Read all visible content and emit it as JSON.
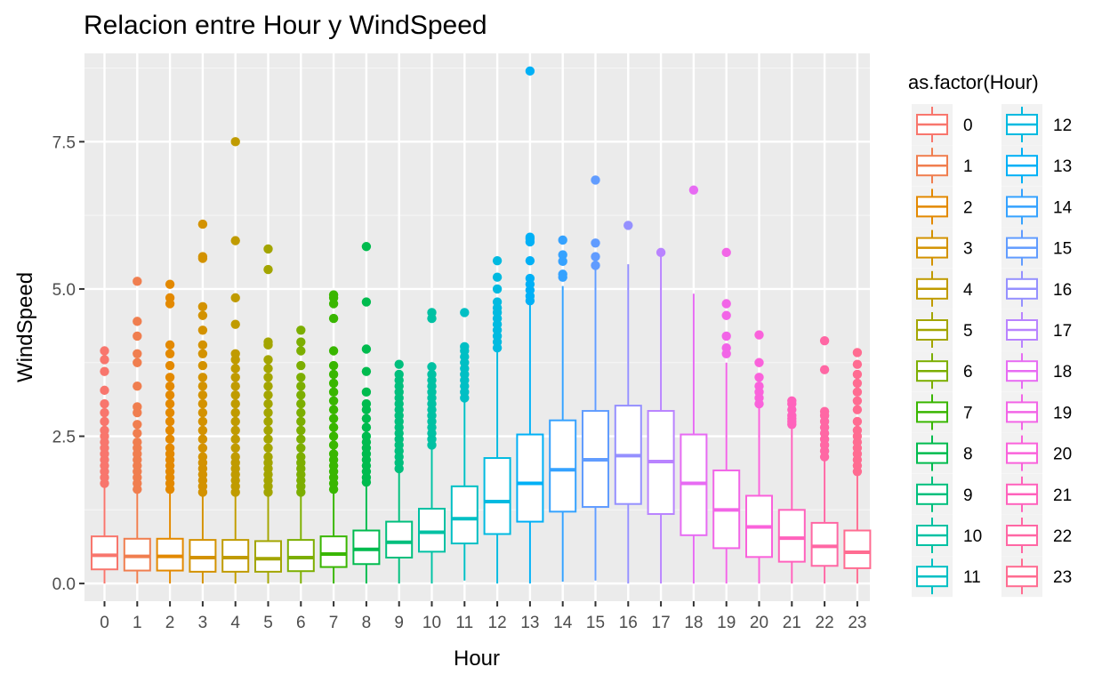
{
  "chart_data": {
    "type": "box",
    "title": "Relacion entre Hour y WindSpeed",
    "xlabel": "Hour",
    "ylabel": "WindSpeed",
    "ylim": [
      -0.3,
      9.0
    ],
    "y_ticks": [
      0.0,
      2.5,
      5.0,
      7.5
    ],
    "y_tick_labels": [
      "0.0",
      "2.5",
      "5.0",
      "7.5"
    ],
    "legend": {
      "title": "as.factor(Hour)",
      "position": "right"
    },
    "colors": [
      "#F8766D",
      "#F07E4F",
      "#E38900",
      "#D39200",
      "#C09B00",
      "#A3A500",
      "#7CAE00",
      "#39B600",
      "#00BB4E",
      "#00BF7D",
      "#00C1A3",
      "#00BFC4",
      "#00BAE0",
      "#00B0F6",
      "#35A2FF",
      "#619CFF",
      "#9590FF",
      "#B983FF",
      "#E76BF3",
      "#F265E7",
      "#FA62DB",
      "#FF62BC",
      "#FF67A4",
      "#FF6C91"
    ],
    "categories": [
      "0",
      "1",
      "2",
      "3",
      "4",
      "5",
      "6",
      "7",
      "8",
      "9",
      "10",
      "11",
      "12",
      "13",
      "14",
      "15",
      "16",
      "17",
      "18",
      "19",
      "20",
      "21",
      "22",
      "23"
    ],
    "boxes": [
      {
        "min": 0.0,
        "q1": 0.24,
        "median": 0.48,
        "q3": 0.8,
        "max": 1.65,
        "outliers": [
          1.7,
          1.8,
          1.9,
          2.0,
          2.1,
          2.2,
          2.3,
          2.4,
          2.5,
          2.6,
          2.75,
          2.9,
          3.05,
          3.28,
          3.6,
          3.8,
          3.95
        ]
      },
      {
        "min": 0.0,
        "q1": 0.22,
        "median": 0.46,
        "q3": 0.76,
        "max": 1.55,
        "outliers": [
          1.6,
          1.7,
          1.8,
          1.9,
          2.0,
          2.1,
          2.2,
          2.3,
          2.4,
          2.55,
          2.7,
          2.9,
          3.0,
          3.35,
          3.75,
          3.9,
          4.2,
          4.45,
          5.13
        ]
      },
      {
        "min": 0.0,
        "q1": 0.22,
        "median": 0.46,
        "q3": 0.76,
        "max": 1.55,
        "outliers": [
          1.6,
          1.7,
          1.8,
          1.9,
          2.0,
          2.1,
          2.2,
          2.3,
          2.45,
          2.6,
          2.75,
          2.9,
          3.05,
          3.2,
          3.35,
          3.5,
          3.7,
          3.9,
          4.05,
          4.75,
          4.85,
          5.08
        ]
      },
      {
        "min": 0.0,
        "q1": 0.2,
        "median": 0.44,
        "q3": 0.74,
        "max": 1.5,
        "outliers": [
          1.55,
          1.65,
          1.75,
          1.85,
          1.95,
          2.05,
          2.15,
          2.3,
          2.45,
          2.6,
          2.75,
          2.9,
          3.05,
          3.2,
          3.35,
          3.5,
          3.7,
          3.9,
          4.05,
          4.3,
          4.55,
          4.7,
          5.52,
          5.55,
          6.1
        ]
      },
      {
        "min": 0.0,
        "q1": 0.2,
        "median": 0.44,
        "q3": 0.74,
        "max": 1.5,
        "outliers": [
          1.55,
          1.65,
          1.75,
          1.85,
          1.95,
          2.05,
          2.15,
          2.3,
          2.45,
          2.6,
          2.75,
          2.9,
          3.05,
          3.2,
          3.35,
          3.5,
          3.65,
          3.8,
          3.9,
          4.4,
          4.85,
          5.82,
          7.5
        ]
      },
      {
        "min": 0.0,
        "q1": 0.2,
        "median": 0.42,
        "q3": 0.72,
        "max": 1.5,
        "outliers": [
          1.55,
          1.65,
          1.75,
          1.85,
          1.95,
          2.05,
          2.15,
          2.3,
          2.45,
          2.6,
          2.75,
          2.9,
          3.05,
          3.2,
          3.35,
          3.5,
          3.65,
          3.8,
          4.05,
          4.1,
          5.33,
          5.68
        ]
      },
      {
        "min": 0.0,
        "q1": 0.21,
        "median": 0.44,
        "q3": 0.74,
        "max": 1.5,
        "outliers": [
          1.55,
          1.65,
          1.75,
          1.85,
          1.95,
          2.05,
          2.15,
          2.3,
          2.45,
          2.6,
          2.75,
          2.9,
          3.05,
          3.2,
          3.35,
          3.5,
          3.7,
          3.95,
          4.1,
          4.3
        ]
      },
      {
        "min": 0.0,
        "q1": 0.28,
        "median": 0.5,
        "q3": 0.8,
        "max": 1.55,
        "outliers": [
          1.6,
          1.7,
          1.8,
          1.9,
          2.0,
          2.1,
          2.2,
          2.35,
          2.5,
          2.65,
          2.8,
          2.95,
          3.1,
          3.25,
          3.4,
          3.55,
          3.7,
          3.95,
          4.5,
          4.75,
          4.85,
          4.9
        ]
      },
      {
        "min": 0.0,
        "q1": 0.33,
        "median": 0.58,
        "q3": 0.9,
        "max": 1.7,
        "outliers": [
          1.72,
          1.8,
          1.9,
          2.0,
          2.1,
          2.2,
          2.3,
          2.4,
          2.5,
          2.65,
          2.8,
          2.95,
          3.05,
          3.25,
          3.6,
          3.98,
          4.78,
          5.72
        ]
      },
      {
        "min": 0.0,
        "q1": 0.44,
        "median": 0.7,
        "q3": 1.05,
        "max": 1.9,
        "outliers": [
          1.95,
          2.05,
          2.15,
          2.25,
          2.35,
          2.45,
          2.55,
          2.65,
          2.75,
          2.85,
          2.95,
          3.05,
          3.15,
          3.25,
          3.35,
          3.45,
          3.55,
          3.72
        ]
      },
      {
        "min": 0.0,
        "q1": 0.54,
        "median": 0.87,
        "q3": 1.27,
        "max": 2.3,
        "outliers": [
          2.35,
          2.45,
          2.55,
          2.65,
          2.75,
          2.85,
          2.95,
          3.05,
          3.15,
          3.25,
          3.35,
          3.45,
          3.55,
          3.68,
          4.5,
          4.6
        ]
      },
      {
        "min": 0.05,
        "q1": 0.68,
        "median": 1.1,
        "q3": 1.65,
        "max": 3.1,
        "outliers": [
          3.15,
          3.25,
          3.35,
          3.45,
          3.55,
          3.65,
          3.75,
          3.85,
          3.95,
          4.02,
          4.6
        ]
      },
      {
        "min": 0.0,
        "q1": 0.84,
        "median": 1.39,
        "q3": 2.13,
        "max": 3.95,
        "outliers": [
          4.0,
          4.1,
          4.2,
          4.3,
          4.4,
          4.5,
          4.6,
          4.68,
          4.78,
          5.0,
          5.2,
          5.48
        ]
      },
      {
        "min": 0.0,
        "q1": 1.05,
        "median": 1.7,
        "q3": 2.53,
        "max": 4.75,
        "outliers": [
          4.8,
          4.88,
          4.98,
          5.08,
          5.18,
          5.48,
          5.8,
          5.85,
          5.88,
          8.7
        ]
      },
      {
        "min": 0.03,
        "q1": 1.22,
        "median": 1.93,
        "q3": 2.77,
        "max": 5.05,
        "outliers": [
          5.2,
          5.25,
          5.47,
          5.58,
          5.83
        ]
      },
      {
        "min": 0.05,
        "q1": 1.3,
        "median": 2.1,
        "q3": 2.93,
        "max": 5.35,
        "outliers": [
          5.4,
          5.55,
          5.78,
          6.85
        ]
      },
      {
        "min": 0.0,
        "q1": 1.35,
        "median": 2.17,
        "q3": 3.02,
        "max": 5.42,
        "outliers": [
          6.08
        ]
      },
      {
        "min": 0.0,
        "q1": 1.18,
        "median": 2.07,
        "q3": 2.93,
        "max": 5.6,
        "outliers": [
          5.62
        ]
      },
      {
        "min": 0.0,
        "q1": 0.82,
        "median": 1.7,
        "q3": 2.53,
        "max": 4.92,
        "outliers": [
          6.68
        ]
      },
      {
        "min": 0.0,
        "q1": 0.6,
        "median": 1.25,
        "q3": 1.92,
        "max": 3.75,
        "outliers": [
          3.9,
          4.0,
          4.2,
          4.55,
          4.75,
          5.62
        ]
      },
      {
        "min": 0.0,
        "q1": 0.45,
        "median": 0.96,
        "q3": 1.49,
        "max": 3.0,
        "outliers": [
          3.05,
          3.15,
          3.25,
          3.35,
          3.5,
          3.75,
          4.22
        ]
      },
      {
        "min": 0.0,
        "q1": 0.37,
        "median": 0.77,
        "q3": 1.25,
        "max": 2.65,
        "outliers": [
          2.7,
          2.75,
          2.8,
          2.85,
          2.95,
          3.05,
          3.1
        ]
      },
      {
        "min": 0.0,
        "q1": 0.3,
        "median": 0.63,
        "q3": 1.03,
        "max": 2.1,
        "outliers": [
          2.15,
          2.25,
          2.35,
          2.45,
          2.55,
          2.65,
          2.75,
          2.85,
          2.92,
          3.63,
          4.12
        ]
      },
      {
        "min": 0.0,
        "q1": 0.26,
        "median": 0.53,
        "q3": 0.9,
        "max": 1.85,
        "outliers": [
          1.9,
          2.0,
          2.1,
          2.2,
          2.3,
          2.4,
          2.5,
          2.6,
          2.75,
          2.95,
          3.1,
          3.25,
          3.4,
          3.55,
          3.72,
          3.92
        ]
      }
    ]
  }
}
